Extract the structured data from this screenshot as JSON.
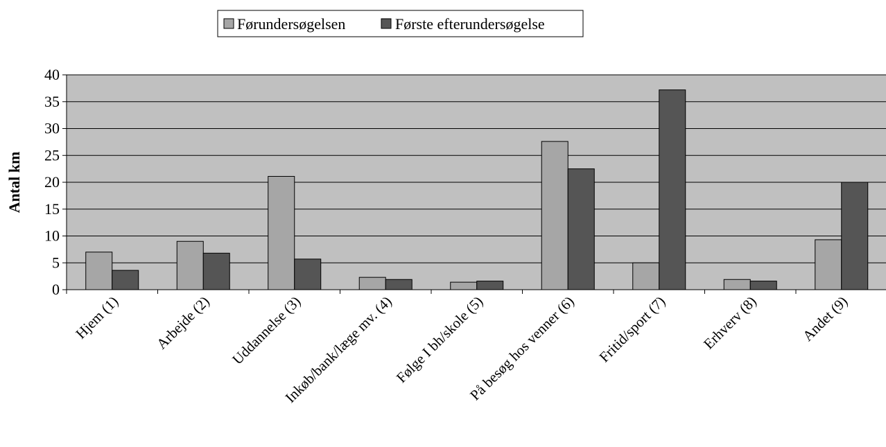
{
  "chart_data": {
    "type": "bar",
    "title": "",
    "xlabel": "",
    "ylabel": "Antal km",
    "ylim": [
      0,
      40
    ],
    "yticks": [
      0,
      5,
      10,
      15,
      20,
      25,
      30,
      35,
      40
    ],
    "grid": true,
    "legend_position": "top",
    "categories": [
      "Hjem (1)",
      "Arbejde (2)",
      "Uddannelse (3)",
      "Inkøb/bank/læge mv. (4)",
      "Følge I bh/skole (5)",
      "På besøg hos venner (6)",
      "Fritid/sport (7)",
      "Erhverv (8)",
      "Andet (9)"
    ],
    "series": [
      {
        "name": "Førundersøgelsen",
        "color": "#a6a6a6",
        "values": [
          7.0,
          9.0,
          21.1,
          2.3,
          1.4,
          27.6,
          5.0,
          1.9,
          9.3
        ]
      },
      {
        "name": "Første efterundersøgelse",
        "color": "#555555",
        "values": [
          3.6,
          6.8,
          5.7,
          1.9,
          1.6,
          22.5,
          37.2,
          1.6,
          20.0
        ]
      }
    ],
    "plot_background": "#c0c0c0"
  }
}
